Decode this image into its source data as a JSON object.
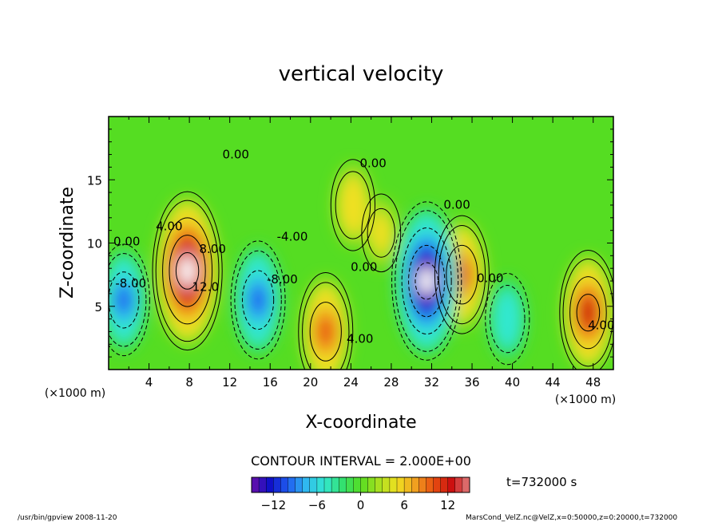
{
  "chart_data": {
    "type": "heatmap",
    "title": "vertical velocity",
    "xlabel": "X-coordinate",
    "ylabel": "Z-coordinate",
    "x_unit": "(×1000 m)",
    "y_unit": "(×1000 m)",
    "xlim": [
      0,
      50
    ],
    "ylim": [
      0,
      20
    ],
    "x_ticks": [
      4,
      8,
      12,
      16,
      20,
      24,
      28,
      32,
      36,
      40,
      44,
      48
    ],
    "y_ticks": [
      5,
      10,
      15
    ],
    "contour_interval_text": "CONTOUR INTERVAL = 2.000E+00",
    "time_label": "t=732000 s",
    "colorbar": {
      "range": [
        -15,
        15
      ],
      "ticks": [
        -12,
        -6,
        0,
        6,
        12
      ],
      "colors": [
        "#6a0fa8",
        "#1010c8",
        "#1f5cf0",
        "#30b8f0",
        "#33e8d0",
        "#33e070",
        "#55dd22",
        "#a8e020",
        "#f0e020",
        "#f0a020",
        "#e85010",
        "#cc1010",
        "#e08080"
      ]
    },
    "contour_labels": [
      {
        "text": "0.00",
        "x": 12.6,
        "z": 16.7
      },
      {
        "text": "0.00",
        "x": 1.8,
        "z": 9.8
      },
      {
        "text": "-8.00",
        "x": 2.2,
        "z": 6.5
      },
      {
        "text": "4.00",
        "x": 6.0,
        "z": 11.0
      },
      {
        "text": "8.00",
        "x": 10.3,
        "z": 9.2
      },
      {
        "text": "12.0",
        "x": 9.6,
        "z": 6.2
      },
      {
        "text": "-8.00",
        "x": 17.2,
        "z": 6.8
      },
      {
        "text": "-4.00",
        "x": 18.2,
        "z": 10.2
      },
      {
        "text": "0.00",
        "x": 25.3,
        "z": 7.8
      },
      {
        "text": "4.00",
        "x": 24.9,
        "z": 2.1
      },
      {
        "text": "0.00",
        "x": 26.2,
        "z": 16.0
      },
      {
        "text": "0.00",
        "x": 34.5,
        "z": 12.7
      },
      {
        "text": "0.00",
        "x": 37.8,
        "z": 6.9
      },
      {
        "text": "4.00",
        "x": 48.8,
        "z": 3.2
      }
    ],
    "features": [
      {
        "x": 1.5,
        "z": 5.5,
        "value": -9
      },
      {
        "x": 7.8,
        "z": 7.8,
        "value": 16
      },
      {
        "x": 14.8,
        "z": 5.5,
        "value": -10
      },
      {
        "x": 21.5,
        "z": 3.0,
        "value": 10
      },
      {
        "x": 31.5,
        "z": 7.0,
        "value": -16
      },
      {
        "x": 35.0,
        "z": 7.5,
        "value": 10
      },
      {
        "x": 39.5,
        "z": 4.0,
        "value": -6
      },
      {
        "x": 47.5,
        "z": 4.5,
        "value": 11
      },
      {
        "x": 24.2,
        "z": 13.0,
        "value": 6
      },
      {
        "x": 27.0,
        "z": 10.8,
        "value": 4
      }
    ]
  },
  "footer": {
    "left": "/usr/bin/gpview   2008-11-20",
    "right": "MarsCond_VelZ.nc@VelZ,x=0:50000,z=0:20000,t=732000"
  }
}
